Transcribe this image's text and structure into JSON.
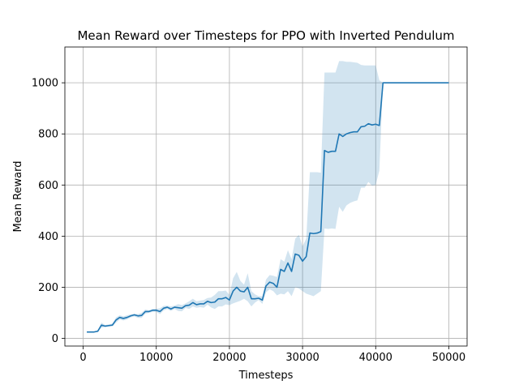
{
  "chart_data": {
    "type": "line",
    "title": "Mean Reward over Timesteps for PPO with Inverted Pendulum",
    "xlabel": "Timesteps",
    "ylabel": "Mean Reward",
    "xlim": [
      -2500,
      52500
    ],
    "ylim": [
      -30,
      1140
    ],
    "xticks": [
      0,
      10000,
      20000,
      30000,
      40000,
      50000
    ],
    "yticks": [
      0,
      200,
      400,
      600,
      800,
      1000
    ],
    "grid": true,
    "legend": "none",
    "colors": {
      "line": "#1f77b4",
      "band": "#1f77b4",
      "grid": "#b0b0b0"
    },
    "series": [
      {
        "x": [
          500,
          1000,
          1500,
          2000,
          2500,
          3000,
          3500,
          4000,
          4500,
          5000,
          5500,
          6000,
          6500,
          7000,
          7500,
          8000,
          8500,
          9000,
          9500,
          10000,
          10500,
          11000,
          11500,
          12000,
          12500,
          13000,
          13500,
          14000,
          14500,
          15000,
          15500,
          16000,
          16500,
          17000,
          17500,
          18000,
          18500,
          19000,
          19500,
          20000,
          20500,
          21000,
          21500,
          22000,
          22500,
          23000,
          23500,
          24000,
          24500,
          25000,
          25500,
          26000,
          26500,
          27000,
          27500,
          28000,
          28500,
          29000,
          29500,
          30000,
          30500,
          31000,
          31500,
          32000,
          32500,
          33000,
          33500,
          34000,
          34500,
          35000,
          35500,
          36000,
          36500,
          37000,
          37500,
          38000,
          38500,
          39000,
          39500,
          40000,
          40500,
          41000,
          41500,
          42000,
          42500,
          43000,
          43500,
          44000,
          44500,
          45000,
          45500,
          46000,
          46500,
          47000,
          47500,
          48000,
          48500,
          49000,
          49500,
          50000
        ],
        "y": [
          25,
          25,
          25,
          28,
          52,
          48,
          50,
          52,
          72,
          82,
          78,
          82,
          88,
          92,
          88,
          90,
          105,
          105,
          110,
          110,
          105,
          118,
          122,
          115,
          122,
          120,
          118,
          128,
          130,
          140,
          132,
          135,
          135,
          145,
          140,
          142,
          155,
          155,
          160,
          150,
          185,
          200,
          185,
          182,
          200,
          155,
          155,
          157,
          150,
          205,
          220,
          215,
          200,
          270,
          262,
          295,
          262,
          330,
          325,
          302,
          320,
          412,
          410,
          412,
          418,
          735,
          728,
          732,
          732,
          800,
          790,
          800,
          805,
          808,
          808,
          828,
          830,
          840,
          835,
          838,
          833,
          1000,
          1000,
          1000,
          1000,
          1000,
          1000,
          1000,
          1000,
          1000,
          1000,
          1000,
          1000,
          1000,
          1000,
          1000,
          1000,
          1000,
          1000,
          1000
        ],
        "y_upper": [
          25,
          25,
          25,
          30,
          62,
          52,
          55,
          58,
          82,
          90,
          86,
          90,
          94,
          97,
          95,
          100,
          113,
          110,
          115,
          116,
          118,
          127,
          128,
          125,
          128,
          134,
          130,
          137,
          145,
          155,
          145,
          148,
          150,
          158,
          160,
          170,
          185,
          185,
          187,
          170,
          235,
          260,
          225,
          210,
          255,
          185,
          172,
          165,
          165,
          230,
          248,
          245,
          240,
          310,
          300,
          345,
          310,
          390,
          405,
          360,
          390,
          650,
          650,
          650,
          648,
          1040,
          1040,
          1040,
          1040,
          1085,
          1085,
          1082,
          1082,
          1080,
          1078,
          1070,
          1068,
          1068,
          1068,
          1068,
          1010,
          1000,
          1000,
          1000,
          1000,
          1000,
          1000,
          1000,
          1000,
          1000,
          1000,
          1000,
          1000,
          1000,
          1000,
          1000,
          1000,
          1000,
          1000,
          1000
        ],
        "y_lower": [
          25,
          25,
          25,
          26,
          42,
          44,
          46,
          47,
          62,
          74,
          70,
          74,
          82,
          86,
          80,
          80,
          97,
          100,
          104,
          104,
          95,
          109,
          115,
          107,
          115,
          107,
          106,
          119,
          115,
          125,
          120,
          122,
          120,
          132,
          121,
          115,
          125,
          125,
          133,
          130,
          137,
          142,
          147,
          155,
          145,
          125,
          140,
          150,
          135,
          180,
          192,
          185,
          168,
          175,
          172,
          185,
          165,
          200,
          195,
          185,
          175,
          170,
          165,
          175,
          185,
          430,
          428,
          430,
          428,
          515,
          495,
          520,
          530,
          536,
          540,
          590,
          590,
          612,
          598,
          600,
          656,
          1000,
          1000,
          1000,
          1000,
          1000,
          1000,
          1000,
          1000,
          1000,
          1000,
          1000,
          1000,
          1000,
          1000,
          1000,
          1000,
          1000,
          1000,
          1000
        ]
      }
    ]
  }
}
